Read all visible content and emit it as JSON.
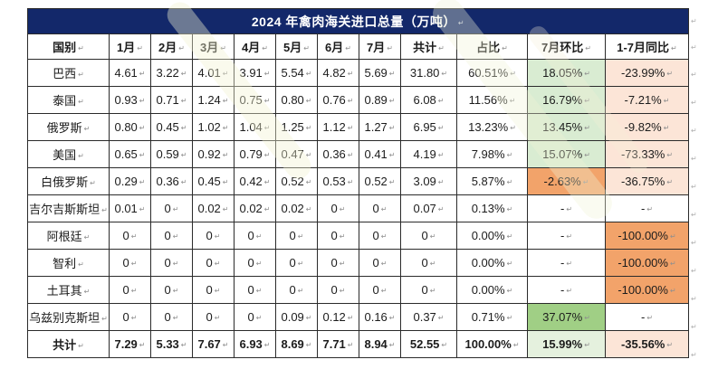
{
  "title": "2024 年禽肉海关进口总量（万吨）",
  "eol_mark": "↵",
  "columns": [
    "国别",
    "1月",
    "2月",
    "3月",
    "4月",
    "5月",
    "6月",
    "7月",
    "共计",
    "占比",
    "7月环比",
    "1-7月同比"
  ],
  "colors": {
    "title_bg": "#13286a",
    "title_text": "#ffffff",
    "border": "#2b2b2b",
    "light_green": "#d9ecd2",
    "pale_green": "#e5f1de",
    "green": "#a0cf85",
    "light_orange": "#fce5d7",
    "orange": "#f2a36a"
  },
  "rows": [
    {
      "country": "巴西",
      "monthly": [
        "4.61",
        "3.22",
        "4.01",
        "3.91",
        "5.54",
        "4.82",
        "5.69"
      ],
      "total": "31.80",
      "share": "60.51%",
      "mom": "18.05%",
      "yoy": "-23.99%",
      "mom_bg": "light_green",
      "yoy_bg": "light_orange",
      "bold": false
    },
    {
      "country": "泰国",
      "monthly": [
        "0.93",
        "0.71",
        "1.24",
        "0.75",
        "0.80",
        "0.76",
        "0.89"
      ],
      "total": "6.08",
      "share": "11.56%",
      "mom": "16.79%",
      "yoy": "-7.21%",
      "mom_bg": "light_green",
      "yoy_bg": "light_orange",
      "bold": false
    },
    {
      "country": "俄罗斯",
      "monthly": [
        "0.80",
        "0.45",
        "1.02",
        "1.04",
        "1.25",
        "1.12",
        "1.27"
      ],
      "total": "6.95",
      "share": "13.23%",
      "mom": "13.45%",
      "yoy": "-9.82%",
      "mom_bg": "light_green",
      "yoy_bg": "light_orange",
      "bold": false
    },
    {
      "country": "美国",
      "monthly": [
        "0.65",
        "0.59",
        "0.92",
        "0.79",
        "0.47",
        "0.36",
        "0.41"
      ],
      "total": "4.19",
      "share": "7.98%",
      "mom": "15.07%",
      "yoy": "-73.33%",
      "mom_bg": "light_green",
      "yoy_bg": "light_orange",
      "bold": false
    },
    {
      "country": "白俄罗斯",
      "monthly": [
        "0.29",
        "0.36",
        "0.45",
        "0.42",
        "0.52",
        "0.53",
        "0.52"
      ],
      "total": "3.09",
      "share": "5.87%",
      "mom": "-2.63%",
      "yoy": "-36.75%",
      "mom_bg": "orange",
      "yoy_bg": "light_orange",
      "bold": false
    },
    {
      "country": "吉尔吉斯斯坦",
      "monthly": [
        "0.01",
        "0",
        "0.02",
        "0.02",
        "0.02",
        "0",
        "0"
      ],
      "total": "0.07",
      "share": "0.13%",
      "mom": "-",
      "yoy": "-",
      "mom_bg": null,
      "yoy_bg": null,
      "bold": false
    },
    {
      "country": "阿根廷",
      "monthly": [
        "0",
        "0",
        "0",
        "0",
        "0",
        "0",
        "0"
      ],
      "total": "0",
      "share": "0.00%",
      "mom": "-",
      "yoy": "-100.00%",
      "mom_bg": null,
      "yoy_bg": "orange",
      "bold": false
    },
    {
      "country": "智利",
      "monthly": [
        "0",
        "0",
        "0",
        "0",
        "0",
        "0",
        "0"
      ],
      "total": "0",
      "share": "0.00%",
      "mom": "-",
      "yoy": "-100.00%",
      "mom_bg": null,
      "yoy_bg": "orange",
      "bold": false
    },
    {
      "country": "土耳其",
      "monthly": [
        "0",
        "0",
        "0",
        "0",
        "0",
        "0",
        "0"
      ],
      "total": "0",
      "share": "0.00%",
      "mom": "-",
      "yoy": "-100.00%",
      "mom_bg": null,
      "yoy_bg": "orange",
      "bold": false
    },
    {
      "country": "乌兹别克斯坦",
      "monthly": [
        "0",
        "0",
        "0",
        "0",
        "0.09",
        "0.12",
        "0.16"
      ],
      "total": "0.37",
      "share": "0.71%",
      "mom": "37.07%",
      "yoy": "-",
      "mom_bg": "green",
      "yoy_bg": null,
      "bold": false
    },
    {
      "country": "共计",
      "monthly": [
        "7.29",
        "5.33",
        "7.67",
        "6.93",
        "8.69",
        "7.71",
        "8.94"
      ],
      "total": "52.55",
      "share": "100.00%",
      "mom": "15.99%",
      "yoy": "-35.56%",
      "mom_bg": "pale_green",
      "yoy_bg": "light_orange",
      "bold": true
    }
  ]
}
